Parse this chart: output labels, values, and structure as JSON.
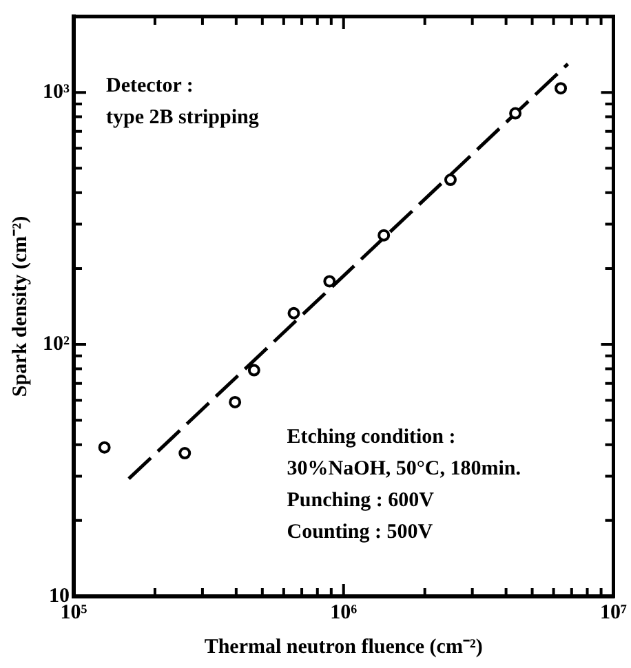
{
  "chart_data": {
    "type": "scatter",
    "xlabel": "Thermal neutron fluence (cm⁻²)",
    "ylabel": "Spark density (cm⁻²)",
    "log": "xy",
    "grid": false,
    "legend": false,
    "xlim": [
      100000,
      10000000
    ],
    "ylim": [
      10,
      2000
    ],
    "xticks": [
      {
        "value": 100000,
        "label": "10⁵"
      },
      {
        "value": 200000,
        "label": null
      },
      {
        "value": 300000,
        "label": null
      },
      {
        "value": 400000,
        "label": null
      },
      {
        "value": 500000,
        "label": null
      },
      {
        "value": 600000,
        "label": null
      },
      {
        "value": 700000,
        "label": null
      },
      {
        "value": 800000,
        "label": null
      },
      {
        "value": 900000,
        "label": null
      },
      {
        "value": 1000000,
        "label": "10⁶"
      },
      {
        "value": 2000000,
        "label": null
      },
      {
        "value": 3000000,
        "label": null
      },
      {
        "value": 4000000,
        "label": null
      },
      {
        "value": 5000000,
        "label": null
      },
      {
        "value": 6000000,
        "label": null
      },
      {
        "value": 7000000,
        "label": null
      },
      {
        "value": 8000000,
        "label": null
      },
      {
        "value": 9000000,
        "label": null
      },
      {
        "value": 10000000,
        "label": "10⁷"
      }
    ],
    "yticks": [
      10,
      {
        "value": 20,
        "label": null
      },
      {
        "value": 30,
        "label": null
      },
      {
        "value": 40,
        "label": null
      },
      {
        "value": 50,
        "label": null
      },
      {
        "value": 60,
        "label": null
      },
      {
        "value": 70,
        "label": null
      },
      {
        "value": 80,
        "label": null
      },
      {
        "value": 90,
        "label": null
      },
      {
        "value": 100,
        "label": "10²"
      },
      {
        "value": 200,
        "label": null
      },
      {
        "value": 300,
        "label": null
      },
      {
        "value": 400,
        "label": null
      },
      {
        "value": 500,
        "label": null
      },
      {
        "value": 600,
        "label": null
      },
      {
        "value": 700,
        "label": null
      },
      {
        "value": 800,
        "label": null
      },
      {
        "value": 900,
        "label": null
      },
      {
        "value": 1000,
        "label": "10³"
      },
      {
        "value": 2000,
        "label": null
      }
    ],
    "series": [
      {
        "type": "scatter",
        "color": "#000000",
        "marker": "circle",
        "x": [
          130000,
          258000,
          396000,
          466000,
          654000,
          887000,
          1410000,
          2490000,
          4330000,
          6380000
        ],
        "values": [
          39,
          37,
          59,
          79,
          133,
          178,
          271,
          450,
          826,
          1038
        ]
      },
      {
        "type": "line",
        "color": "#000000",
        "line_style": "dashed",
        "marker": "none",
        "x": [
          160000,
          1000000,
          6780000
        ],
        "values": [
          29.3,
          187,
          1297
        ]
      }
    ],
    "annotations": [
      "Detector :",
      "type 2B stripping",
      "Etching condition :",
      "30%NaOH, 50°C, 180min.",
      "Punching : 600V",
      "Counting : 500V"
    ]
  }
}
